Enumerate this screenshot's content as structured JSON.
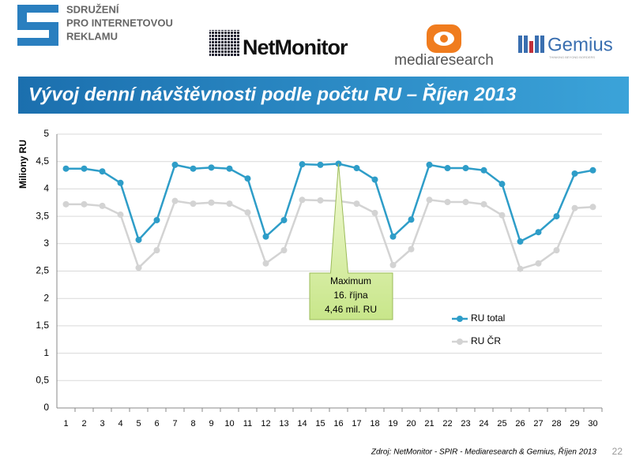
{
  "header": {
    "logo_lines": [
      "SDRUŽENÍ",
      "PRO INTERNETOVOU",
      "REKLAMU"
    ],
    "partners": [
      "NetMonitor",
      "mediaresearch",
      "Gemius"
    ],
    "gemius_tagline": "THINKING BEYOND BORDERS"
  },
  "slide_title": "Vývoj denní návštěvnosti podle počtu RU – Říjen 2013",
  "chart_data": {
    "type": "line",
    "ylabel": "Miliony RU",
    "categories": [
      "1",
      "2",
      "3",
      "4",
      "5",
      "6",
      "7",
      "8",
      "9",
      "10",
      "11",
      "12",
      "13",
      "14",
      "15",
      "16",
      "17",
      "18",
      "19",
      "20",
      "21",
      "22",
      "23",
      "24",
      "25",
      "26",
      "27",
      "28",
      "29",
      "30"
    ],
    "series": [
      {
        "name": "RU total",
        "color": "#2e9dc8",
        "values": [
          4.37,
          4.37,
          4.32,
          4.11,
          3.07,
          3.43,
          4.44,
          4.37,
          4.39,
          4.37,
          4.19,
          3.13,
          3.43,
          4.45,
          4.44,
          4.46,
          4.38,
          4.17,
          3.13,
          3.44,
          4.44,
          4.38,
          4.38,
          4.34,
          4.09,
          3.04,
          3.21,
          3.5,
          4.28,
          4.34
        ]
      },
      {
        "name": "RU ČR",
        "color": "#d3d3d3",
        "values": [
          3.72,
          3.72,
          3.69,
          3.53,
          2.56,
          2.88,
          3.78,
          3.73,
          3.75,
          3.73,
          3.57,
          2.64,
          2.88,
          3.8,
          3.79,
          3.78,
          3.73,
          3.56,
          2.61,
          2.9,
          3.8,
          3.76,
          3.76,
          3.72,
          3.52,
          2.54,
          2.64,
          2.88,
          3.65,
          3.67
        ]
      }
    ],
    "ylim": [
      0,
      5
    ],
    "yticks": [
      0,
      {
        "value": 0.5,
        "label": "0,5"
      },
      1,
      {
        "value": 1.5,
        "label": "1,5"
      },
      2,
      {
        "value": 2.5,
        "label": "2,5"
      },
      3,
      {
        "value": 3.5,
        "label": "3,5"
      },
      4,
      {
        "value": 4.5,
        "label": "4,5"
      },
      5
    ],
    "grid": true,
    "legend": "right",
    "annotation": [
      "Maximum",
      "16. října",
      "4,46 mil. RU"
    ]
  },
  "footer": {
    "source": "Zdroj: NetMonitor - SPIR - Mediaresearch & Gemius, Říjen 2013",
    "page_number": "22"
  }
}
